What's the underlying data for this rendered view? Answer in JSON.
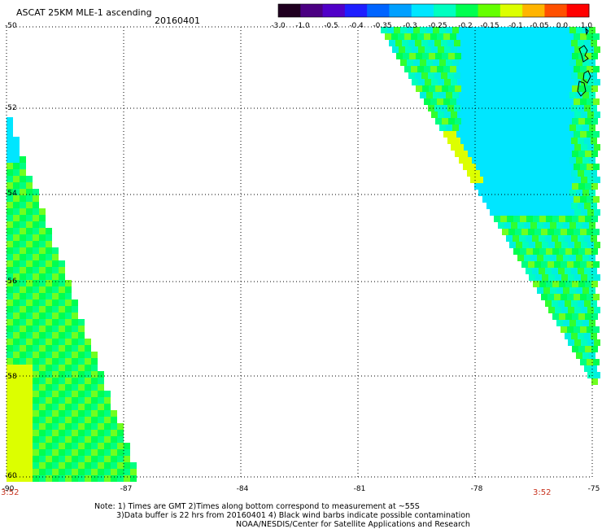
{
  "header": {
    "title": "ASCAT 25KM MLE-1 ascending",
    "date": "20160401"
  },
  "colorbar": {
    "labels": [
      "-3.0",
      "-1.0",
      "-0.5",
      "-0.4",
      "-0.35",
      "-0.3",
      "-0.25",
      "-0.2",
      "-0.15",
      "-0.1",
      "-0.05",
      "0.0",
      "1.0"
    ],
    "colors": [
      "#200020",
      "#4b0082",
      "#5000c8",
      "#1e1eff",
      "#0064ff",
      "#00a0ff",
      "#00e6ff",
      "#00ffc0",
      "#00ff50",
      "#64ff00",
      "#dcff00",
      "#ffb400",
      "#ff5000",
      "#ff0000"
    ]
  },
  "axes": {
    "lat_labels": [
      "-50",
      "-52",
      "-54",
      "-56",
      "-58",
      "-60"
    ],
    "lon_labels": [
      "-90",
      "-87",
      "-84",
      "-81",
      "-78",
      "-75"
    ]
  },
  "swath_times": {
    "left": "3:52",
    "right": "3:52"
  },
  "notes": {
    "line1": "Note: 1) Times are GMT 2)Times along bottom correspond to measurement at ~55S",
    "line2": "3)Data buffer is 22 hrs from 20160401 4) Black wind barbs indicate possible contamination",
    "line3": "NOAA/NESDIS/Center for Satellite Applications and Research"
  }
}
